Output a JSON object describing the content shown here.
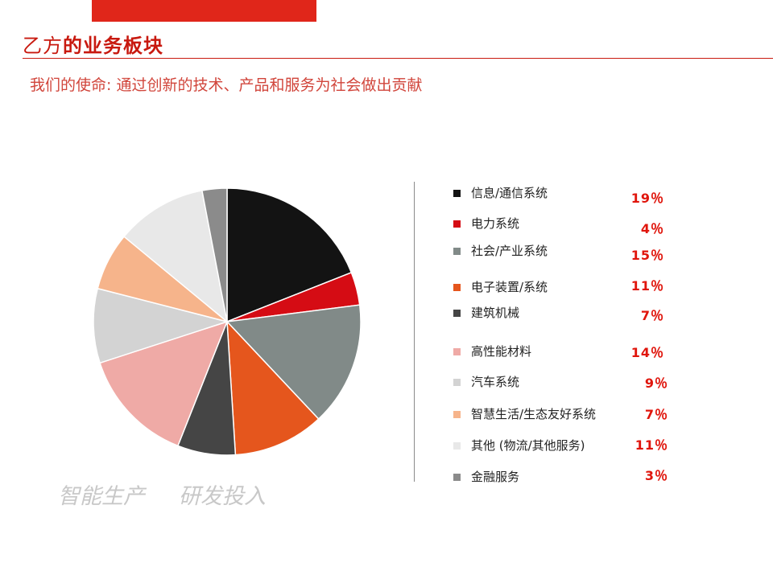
{
  "header": {
    "title_normal": "乙方",
    "title_bold": "的业务板块",
    "subtitle": "我们的使命: 通过创新的技术、产品和服务为社会做出贡献"
  },
  "watermarks": [
    "智能生产",
    "研发投入"
  ],
  "chart_data": {
    "type": "pie",
    "title": "",
    "legend_position": "right",
    "slices": [
      {
        "label": "信息/通信系统",
        "value": 19,
        "value_label": "19％",
        "color": "#131313"
      },
      {
        "label": "电力系统",
        "value": 4,
        "value_label": "4％",
        "color": "#d50c14"
      },
      {
        "label": "社会/产业系统",
        "value": 15,
        "value_label": "15％",
        "color": "#818a88"
      },
      {
        "label": "电子装置/系统",
        "value": 11,
        "value_label": "11％",
        "color": "#e5561d"
      },
      {
        "label": "建筑机械",
        "value": 7,
        "value_label": "7％",
        "color": "#454545"
      },
      {
        "label": "高性能材料",
        "value": 14,
        "value_label": "14％",
        "color": "#efaaa6"
      },
      {
        "label": "汽车系统",
        "value": 9,
        "value_label": "9％",
        "color": "#d3d3d3"
      },
      {
        "label": "智慧生活/生态友好系统",
        "value": 7,
        "value_label": "7％",
        "color": "#f6b48b"
      },
      {
        "label": "其他 (物流/其他服务)",
        "value": 11,
        "value_label": "11％",
        "color": "#e8e8e8"
      },
      {
        "label": "金融服务",
        "value": 3,
        "value_label": "3％",
        "color": "#8b8b8b"
      }
    ]
  }
}
